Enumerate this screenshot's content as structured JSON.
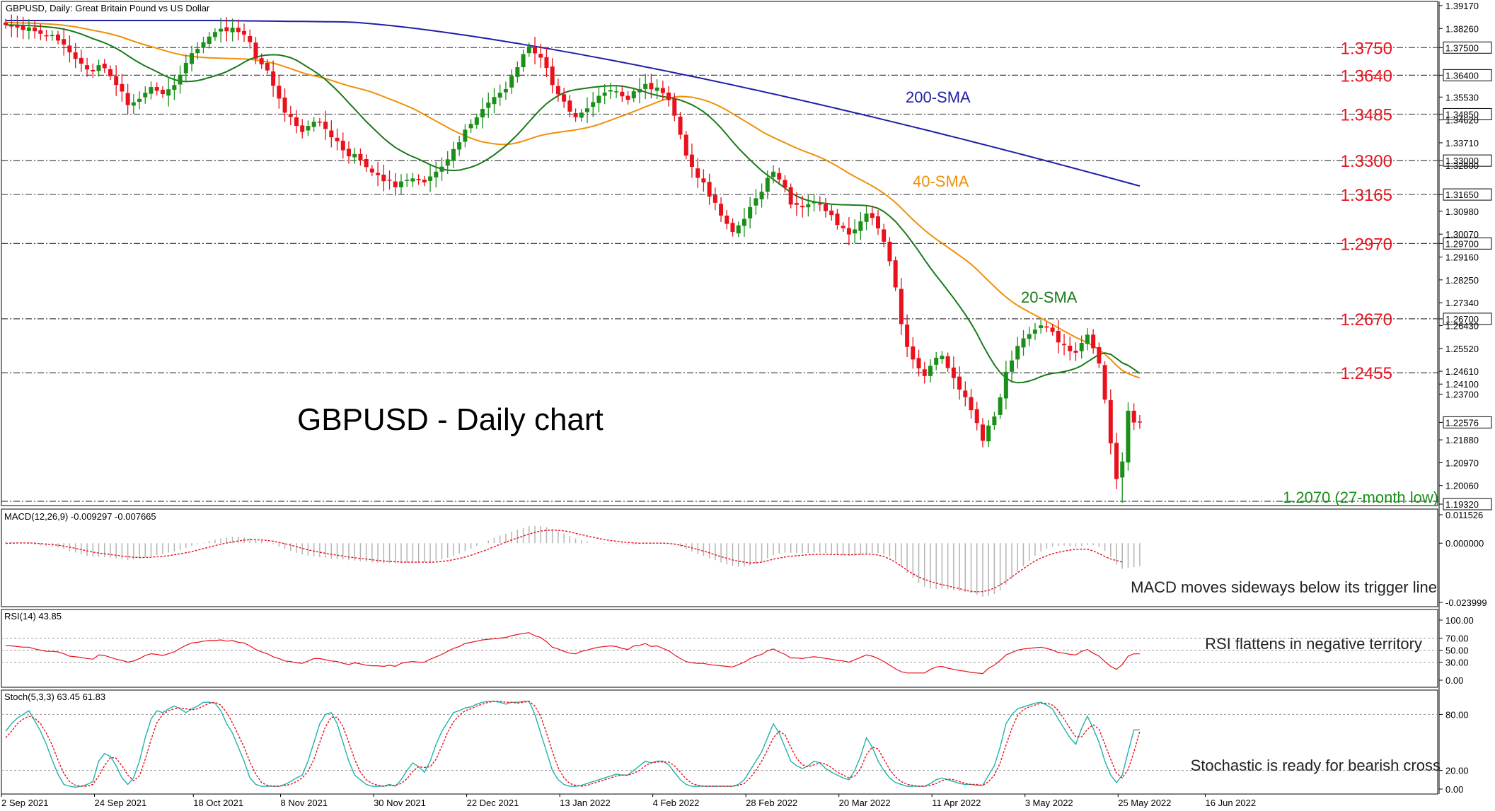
{
  "colors": {
    "bull": "#1a8f1a",
    "bear": "#e8111c",
    "sma20": "#1a7a1a",
    "sma40": "#f0900a",
    "sma200": "#1f1fa8",
    "level": "#e8111c",
    "low_label": "#1a8f1a",
    "macd_hist": "#b4b4b4",
    "macd_signal": "#e8111c",
    "rsi": "#e8111c",
    "stoch_k": "#20b2aa",
    "stoch_d": "#e8111c"
  },
  "header": "GBPUSD, Daily:  Great Britain Pound vs US Dollar",
  "big_title": "GBPUSD - Daily chart",
  "chart_data": [
    {
      "type": "candlestick",
      "title": "GBPUSD, Daily:  Great Britain Pound vs US Dollar",
      "ylim": [
        1.1932,
        1.3917
      ],
      "y_ticks": [
        "1.39170",
        "1.38260",
        "1.37500",
        "1.36400",
        "1.35530",
        "1.34850",
        "1.34620",
        "1.33710",
        "1.33000",
        "1.32800",
        "1.31650",
        "1.30980",
        "1.30070",
        "1.29700",
        "1.29160",
        "1.28250",
        "1.27340",
        "1.26700",
        "1.26430",
        "1.25520",
        "1.24610",
        "1.24100",
        "1.23700",
        "1.22576",
        "1.21880",
        "1.20970",
        "1.20060",
        "1.19320"
      ],
      "x_ticks": [
        "2 Sep 2021",
        "24 Sep 2021",
        "18 Oct 2021",
        "8 Nov 2021",
        "30 Nov 2021",
        "22 Dec 2021",
        "13 Jan 2022",
        "4 Feb 2022",
        "28 Feb 2022",
        "20 Mar 2022",
        "11 Apr 2022",
        "3 May 2022",
        "25 May 2022",
        "16 Jun 2022"
      ],
      "levels": [
        "1.3750",
        "1.3640",
        "1.3485",
        "1.3300",
        "1.3165",
        "1.2970",
        "1.2670",
        "1.2455"
      ],
      "last_price": "1.22576",
      "low_annotation": "1.2070 (27-month low)",
      "sma_labels": [
        "200-SMA",
        "40-SMA",
        "20-SMA"
      ],
      "close": [
        1.384,
        1.3835,
        1.383,
        1.382,
        1.383,
        1.3815,
        1.3805,
        1.3798,
        1.38,
        1.3778,
        1.3762,
        1.3731,
        1.3705,
        1.3686,
        1.3663,
        1.3655,
        1.368,
        1.3668,
        1.3636,
        1.3601,
        1.3575,
        1.3521,
        1.3532,
        1.3546,
        1.357,
        1.3593,
        1.3578,
        1.3565,
        1.3584,
        1.3601,
        1.3642,
        1.3689,
        1.3728,
        1.3745,
        1.3771,
        1.3794,
        1.3812,
        1.3825,
        1.3815,
        1.3829,
        1.3812,
        1.3802,
        1.3772,
        1.3706,
        1.3683,
        1.3659,
        1.3598,
        1.3547,
        1.3491,
        1.3474,
        1.3438,
        1.3414,
        1.3438,
        1.3455,
        1.3451,
        1.3426,
        1.3393,
        1.3377,
        1.3341,
        1.3317,
        1.3326,
        1.3302,
        1.3274,
        1.3253,
        1.3242,
        1.3218,
        1.3221,
        1.3194,
        1.3217,
        1.3223,
        1.3229,
        1.3222,
        1.3213,
        1.3237,
        1.3256,
        1.3276,
        1.3305,
        1.3346,
        1.3373,
        1.3423,
        1.3446,
        1.3472,
        1.3506,
        1.3531,
        1.3553,
        1.357,
        1.3585,
        1.3637,
        1.3672,
        1.3724,
        1.3755,
        1.3727,
        1.371,
        1.3669,
        1.3601,
        1.3564,
        1.3535,
        1.3495,
        1.3473,
        1.3491,
        1.3508,
        1.3533,
        1.3558,
        1.3571,
        1.3581,
        1.3576,
        1.3556,
        1.3542,
        1.3576,
        1.3585,
        1.3605,
        1.3584,
        1.3591,
        1.3569,
        1.3541,
        1.3479,
        1.3403,
        1.332,
        1.3275,
        1.3231,
        1.3213,
        1.3157,
        1.3132,
        1.3081,
        1.3048,
        1.3016,
        1.3042,
        1.3068,
        1.3115,
        1.315,
        1.3176,
        1.3231,
        1.3256,
        1.3225,
        1.3192,
        1.3125,
        1.3124,
        1.3114,
        1.3126,
        1.3135,
        1.3128,
        1.3099,
        1.3083,
        1.3044,
        1.3031,
        1.3006,
        1.3026,
        1.3058,
        1.3089,
        1.3072,
        1.303,
        1.2977,
        1.2899,
        1.2795,
        1.2649,
        1.2558,
        1.2508,
        1.2473,
        1.2442,
        1.2483,
        1.2515,
        1.2523,
        1.2474,
        1.2434,
        1.2388,
        1.2358,
        1.2306,
        1.2255,
        1.2184,
        1.2245,
        1.2281,
        1.2357,
        1.2459,
        1.2504,
        1.2562,
        1.2592,
        1.2609,
        1.2627,
        1.2644,
        1.2635,
        1.2618,
        1.2576,
        1.2565,
        1.2541,
        1.2535,
        1.2574,
        1.2607,
        1.2553,
        1.2492,
        1.2348,
        1.2174,
        1.2032,
        1.2102,
        1.2304,
        1.2257,
        1.2258
      ]
    },
    {
      "type": "histogram+line",
      "title": "MACD(12,26,9) -0.009297 -0.007665",
      "ylim": [
        -0.023999,
        0.011526
      ],
      "y_ticks": [
        "0.011526",
        "0.000000",
        "-0.023999"
      ],
      "annotation": "MACD moves sideways below its trigger line",
      "macd": [
        0.0007,
        0.0005,
        0.0003,
        0.0,
        -0.0002,
        -0.0006,
        -0.0009,
        -0.0012,
        -0.0013,
        -0.0017,
        -0.0023,
        -0.0032,
        -0.0038,
        -0.0045,
        -0.0052,
        -0.0055,
        -0.0055,
        -0.0056,
        -0.0058,
        -0.0061,
        -0.0065,
        -0.0068,
        -0.0066,
        -0.0062,
        -0.0057,
        -0.0052,
        -0.0048,
        -0.0044,
        -0.0038,
        -0.0033,
        -0.0027,
        -0.0019,
        -0.0011,
        -0.0004,
        0.0002,
        0.0009,
        0.0014,
        0.0019,
        0.0022,
        0.0025,
        0.0026,
        0.0024,
        0.0021,
        0.0015,
        0.001,
        0.0003,
        -0.0004,
        -0.0014,
        -0.0022,
        -0.0031,
        -0.0039,
        -0.0046,
        -0.005,
        -0.0054,
        -0.0057,
        -0.0059,
        -0.0062,
        -0.0064,
        -0.0066,
        -0.0069,
        -0.0071,
        -0.0073,
        -0.0075,
        -0.0078,
        -0.0079,
        -0.0081,
        -0.0081,
        -0.0082,
        -0.0081,
        -0.0079,
        -0.0078,
        -0.0077,
        -0.0077,
        -0.0075,
        -0.0071,
        -0.0066,
        -0.0059,
        -0.0051,
        -0.0042,
        -0.0032,
        -0.0022,
        -0.0011,
        0.0,
        0.0011,
        0.0022,
        0.0031,
        0.0038,
        0.0047,
        0.0055,
        0.0062,
        0.0069,
        0.007,
        0.0069,
        0.0065,
        0.0057,
        0.0048,
        0.0039,
        0.0029,
        0.0019,
        0.0012,
        0.0006,
        0.0001,
        -0.0001,
        -0.0002,
        -0.0002,
        -0.0003,
        -0.0004,
        -0.0006,
        -0.0005,
        -0.0003,
        0.0,
        0.0,
        0.0001,
        0.0001,
        -0.0001,
        -0.0006,
        -0.0014,
        -0.0024,
        -0.0034,
        -0.0044,
        -0.0051,
        -0.0061,
        -0.0069,
        -0.0078,
        -0.0086,
        -0.0092,
        -0.0095,
        -0.0095,
        -0.0091,
        -0.0084,
        -0.0075,
        -0.0062,
        -0.0049,
        -0.0042,
        -0.0038,
        -0.0039,
        -0.004,
        -0.0041,
        -0.004,
        -0.0038,
        -0.0038,
        -0.004,
        -0.0042,
        -0.0046,
        -0.0048,
        -0.0051,
        -0.0051,
        -0.0048,
        -0.0043,
        -0.004,
        -0.0041,
        -0.0045,
        -0.0055,
        -0.0071,
        -0.0094,
        -0.0119,
        -0.0141,
        -0.016,
        -0.0176,
        -0.0184,
        -0.0186,
        -0.0185,
        -0.0187,
        -0.019,
        -0.0194,
        -0.0198,
        -0.0203,
        -0.0209,
        -0.0217,
        -0.0214,
        -0.0206,
        -0.0191,
        -0.0168,
        -0.0144,
        -0.0117,
        -0.0093,
        -0.0071,
        -0.0051,
        -0.0034,
        -0.0022,
        -0.0014,
        -0.0011,
        -0.001,
        -0.0012,
        -0.0014,
        -0.0012,
        -0.0008,
        -0.0009,
        -0.0015,
        -0.0031,
        -0.0056,
        -0.0087,
        -0.0104,
        -0.01,
        -0.0097,
        -0.0093
      ],
      "signal": [
        -0.0001,
        0.0,
        0.0001,
        0.0001,
        0.0001,
        0.0,
        -0.0002,
        -0.0004,
        -0.0006,
        -0.0008,
        -0.0012,
        -0.0016,
        -0.0021,
        -0.0026,
        -0.0031,
        -0.0036,
        -0.004,
        -0.0043,
        -0.0046,
        -0.0049,
        -0.0052,
        -0.0055,
        -0.0057,
        -0.0058,
        -0.0058,
        -0.0057,
        -0.0055,
        -0.0053,
        -0.0051,
        -0.0047,
        -0.0043,
        -0.0039,
        -0.0034,
        -0.0028,
        -0.0022,
        -0.0016,
        -0.001,
        -0.0004,
        0.0001,
        0.0005,
        0.0009,
        0.0012,
        0.0014,
        0.0014,
        0.0013,
        0.0011,
        0.0008,
        0.0003,
        -0.0002,
        -0.0008,
        -0.0014,
        -0.0021,
        -0.0027,
        -0.0032,
        -0.0037,
        -0.0041,
        -0.0045,
        -0.0049,
        -0.0052,
        -0.0056,
        -0.0059,
        -0.0062,
        -0.0064,
        -0.0067,
        -0.007,
        -0.0072,
        -0.0074,
        -0.0075,
        -0.0077,
        -0.0077,
        -0.0077,
        -0.0077,
        -0.0077,
        -0.0077,
        -0.0076,
        -0.0074,
        -0.0071,
        -0.0067,
        -0.0062,
        -0.0056,
        -0.0049,
        -0.0041,
        -0.0033,
        -0.0024,
        -0.0014,
        -0.0005,
        0.0004,
        0.0013,
        0.0021,
        0.0029,
        0.0037,
        0.0044,
        0.0049,
        0.0052,
        0.0053,
        0.0052,
        0.005,
        0.0046,
        0.004,
        0.0035,
        0.0029,
        0.0024,
        0.0019,
        0.0014,
        0.0011,
        0.0008,
        0.0005,
        0.0003,
        0.0001,
        0.0,
        0.0,
        0.0,
        0.0,
        0.0,
        -0.0001,
        -0.0004,
        -0.0008,
        -0.0013,
        -0.0019,
        -0.0025,
        -0.0032,
        -0.0039,
        -0.0047,
        -0.0055,
        -0.0061,
        -0.0068,
        -0.0073,
        -0.0077,
        -0.008,
        -0.0079,
        -0.0077,
        -0.0071,
        -0.0065,
        -0.006,
        -0.0056,
        -0.0053,
        -0.0051,
        -0.0049,
        -0.0047,
        -0.0046,
        -0.0045,
        -0.0045,
        -0.0046,
        -0.0046,
        -0.0047,
        -0.0047,
        -0.0046,
        -0.0045,
        -0.0044,
        -0.0045,
        -0.0048,
        -0.0054,
        -0.0064,
        -0.0077,
        -0.0093,
        -0.011,
        -0.0124,
        -0.0137,
        -0.0147,
        -0.0155,
        -0.0162,
        -0.0168,
        -0.0173,
        -0.0179,
        -0.0184,
        -0.0191,
        -0.0195,
        -0.0197,
        -0.0196,
        -0.0191,
        -0.0182,
        -0.0169,
        -0.0154,
        -0.0137,
        -0.012,
        -0.0103,
        -0.0087,
        -0.0072,
        -0.006,
        -0.0051,
        -0.0043,
        -0.0037,
        -0.0032,
        -0.0028,
        -0.0025,
        -0.0024,
        -0.0025,
        -0.0031,
        -0.0042,
        -0.0054,
        -0.0064,
        -0.007,
        -0.0077
      ]
    },
    {
      "type": "line",
      "title": "RSI(14) 43.85",
      "ylim": [
        0,
        100
      ],
      "y_ticks": [
        "100.00",
        "70.00",
        "50.00",
        "30.00",
        "0.00"
      ],
      "annotation": "RSI flattens in negative territory",
      "values": [
        58,
        57,
        56,
        55,
        55,
        52,
        50,
        48,
        48,
        47,
        44,
        40,
        39,
        38,
        36,
        35,
        42,
        41,
        38,
        35,
        33,
        30,
        32,
        36,
        41,
        44,
        43,
        41,
        44,
        47,
        53,
        58,
        62,
        63,
        65,
        66,
        66,
        67,
        65,
        66,
        63,
        62,
        57,
        51,
        47,
        44,
        39,
        36,
        32,
        31,
        29,
        28,
        32,
        36,
        36,
        34,
        32,
        31,
        28,
        26,
        29,
        27,
        25,
        24,
        24,
        23,
        25,
        23,
        28,
        30,
        31,
        30,
        30,
        35,
        39,
        43,
        48,
        53,
        56,
        61,
        63,
        65,
        67,
        68,
        69,
        70,
        71,
        74,
        76,
        78,
        79,
        74,
        71,
        64,
        55,
        52,
        48,
        45,
        44,
        48,
        50,
        53,
        55,
        56,
        57,
        56,
        53,
        51,
        57,
        58,
        61,
        56,
        57,
        53,
        49,
        42,
        36,
        31,
        29,
        28,
        28,
        26,
        25,
        24,
        23,
        22,
        26,
        30,
        36,
        40,
        43,
        49,
        52,
        47,
        43,
        37,
        37,
        36,
        38,
        39,
        38,
        36,
        35,
        33,
        32,
        30,
        34,
        38,
        42,
        40,
        36,
        31,
        25,
        19,
        14,
        12,
        12,
        12,
        12,
        18,
        22,
        23,
        20,
        18,
        16,
        15,
        13,
        12,
        11,
        20,
        25,
        33,
        42,
        46,
        50,
        52,
        53,
        54,
        55,
        53,
        50,
        46,
        45,
        43,
        42,
        48,
        51,
        45,
        40,
        31,
        23,
        18,
        26,
        40,
        43.85,
        43.85
      ]
    },
    {
      "type": "line",
      "title": "Stoch(5,3,3) 63.45 61.83",
      "ylim": [
        0,
        100
      ],
      "y_ticks": [
        "80.00",
        "20.00",
        "0.00"
      ],
      "annotation": "Stochastic is ready for bearish cross",
      "k": [
        62,
        70,
        76,
        80,
        84,
        73,
        62,
        48,
        31,
        16,
        5,
        3,
        2,
        3,
        5,
        8,
        30,
        38,
        35,
        25,
        12,
        5,
        12,
        30,
        55,
        75,
        84,
        82,
        86,
        89,
        86,
        82,
        86,
        89,
        93,
        93,
        92,
        84,
        70,
        60,
        45,
        30,
        12,
        5,
        3,
        3,
        3,
        3,
        5,
        8,
        12,
        15,
        30,
        50,
        70,
        80,
        82,
        70,
        50,
        30,
        15,
        10,
        5,
        3,
        3,
        3,
        5,
        3,
        10,
        20,
        28,
        24,
        18,
        30,
        48,
        62,
        72,
        82,
        84,
        87,
        88,
        91,
        93,
        94,
        94,
        93,
        91,
        93,
        93,
        94,
        94,
        80,
        60,
        40,
        20,
        10,
        5,
        3,
        3,
        4,
        6,
        8,
        10,
        12,
        14,
        16,
        15,
        15,
        20,
        25,
        30,
        28,
        30,
        30,
        26,
        18,
        10,
        5,
        3,
        3,
        3,
        3,
        3,
        3,
        3,
        3,
        5,
        10,
        20,
        30,
        40,
        55,
        70,
        60,
        45,
        30,
        25,
        22,
        25,
        30,
        28,
        22,
        18,
        15,
        12,
        10,
        20,
        35,
        55,
        45,
        30,
        20,
        12,
        7,
        5,
        3,
        3,
        3,
        3,
        6,
        10,
        12,
        10,
        8,
        6,
        5,
        5,
        4,
        4,
        15,
        25,
        45,
        70,
        80,
        86,
        88,
        90,
        92,
        93,
        90,
        86,
        75,
        65,
        55,
        48,
        65,
        78,
        65,
        50,
        30,
        15,
        7,
        15,
        40,
        63.45,
        63.45
      ],
      "d": [
        55,
        62,
        70,
        75,
        78,
        76,
        70,
        60,
        47,
        31,
        17,
        8,
        4,
        3,
        3,
        5,
        14,
        25,
        34,
        33,
        25,
        15,
        9,
        14,
        32,
        53,
        71,
        80,
        84,
        86,
        87,
        86,
        85,
        86,
        89,
        92,
        93,
        90,
        82,
        71,
        58,
        45,
        29,
        16,
        7,
        4,
        3,
        3,
        4,
        5,
        8,
        12,
        19,
        32,
        50,
        67,
        77,
        77,
        67,
        50,
        32,
        18,
        10,
        6,
        4,
        3,
        4,
        4,
        6,
        11,
        19,
        24,
        23,
        24,
        32,
        46,
        61,
        72,
        79,
        84,
        86,
        89,
        91,
        93,
        94,
        94,
        93,
        93,
        92,
        93,
        94,
        89,
        78,
        60,
        40,
        23,
        12,
        6,
        4,
        3,
        4,
        6,
        8,
        10,
        12,
        14,
        15,
        15,
        17,
        20,
        25,
        28,
        29,
        29,
        29,
        25,
        18,
        11,
        6,
        4,
        3,
        3,
        3,
        3,
        3,
        3,
        4,
        6,
        12,
        20,
        30,
        42,
        55,
        62,
        58,
        45,
        33,
        26,
        24,
        26,
        28,
        27,
        23,
        18,
        15,
        12,
        14,
        22,
        37,
        45,
        43,
        32,
        21,
        13,
        8,
        5,
        4,
        3,
        3,
        4,
        6,
        9,
        11,
        10,
        8,
        6,
        5,
        5,
        4,
        8,
        15,
        28,
        47,
        65,
        79,
        85,
        88,
        90,
        92,
        92,
        90,
        84,
        75,
        65,
        56,
        56,
        64,
        69,
        64,
        48,
        32,
        17,
        12,
        21,
        40,
        61.83
      ],
      "grid_levels": [
        80,
        20
      ]
    }
  ]
}
